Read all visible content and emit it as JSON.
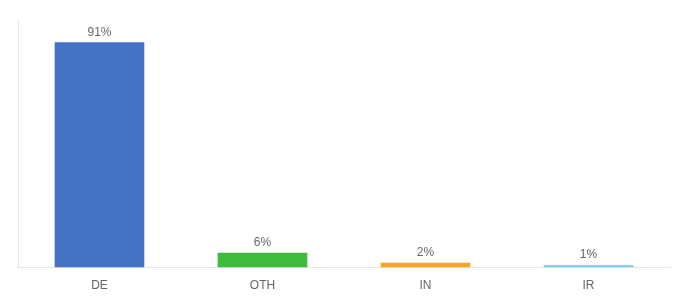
{
  "chart_data": {
    "type": "bar",
    "categories": [
      "DE",
      "OTH",
      "IN",
      "IR"
    ],
    "values": [
      91,
      6,
      2,
      1
    ],
    "value_labels": [
      "91%",
      "6%",
      "2%",
      "1%"
    ],
    "colors": [
      "#4472c4",
      "#3dbb3d",
      "#f5a623",
      "#87ceeb"
    ],
    "ylim": [
      0,
      100
    ],
    "grid": false,
    "data_labels": true,
    "tick_labels": "x"
  }
}
